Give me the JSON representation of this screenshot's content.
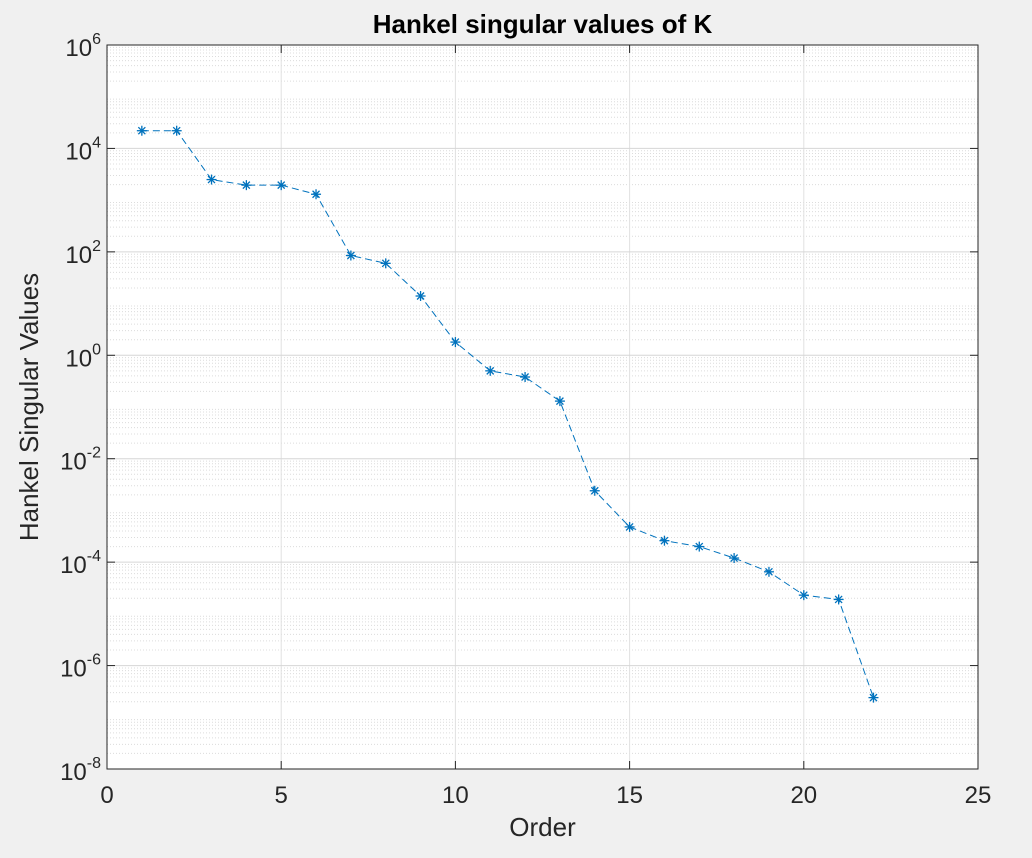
{
  "chart_data": {
    "type": "line",
    "title": "Hankel singular values of K",
    "xlabel": "Order",
    "ylabel": "Hankel Singular Values",
    "xlim": [
      0,
      25
    ],
    "ylim": [
      1e-08,
      1000000.0
    ],
    "yscale": "log",
    "grid": true,
    "x_ticks": [
      "0",
      "5",
      "10",
      "15",
      "20",
      "25"
    ],
    "y_ticks": [
      {
        "base": "10",
        "exp": "-8"
      },
      {
        "base": "10",
        "exp": "-6"
      },
      {
        "base": "10",
        "exp": "-4"
      },
      {
        "base": "10",
        "exp": "-2"
      },
      {
        "base": "10",
        "exp": "0"
      },
      {
        "base": "10",
        "exp": "2"
      },
      {
        "base": "10",
        "exp": "4"
      },
      {
        "base": "10",
        "exp": "6"
      }
    ],
    "series": [
      {
        "color": "#0072bd",
        "line_style": "dashed",
        "marker": "asterisk",
        "x": [
          1,
          2,
          3,
          4,
          5,
          6,
          7,
          8,
          9,
          10,
          11,
          12,
          13,
          14,
          15,
          16,
          17,
          18,
          19,
          20,
          21,
          22
        ],
        "y": [
          22000,
          22000,
          2500,
          1950,
          1950,
          1300,
          85,
          60,
          14,
          1.8,
          0.5,
          0.38,
          0.13,
          0.0024,
          0.00048,
          0.00026,
          0.0002,
          0.00012,
          6.5e-05,
          2.3e-05,
          1.9e-05,
          2.4e-07
        ]
      }
    ]
  }
}
